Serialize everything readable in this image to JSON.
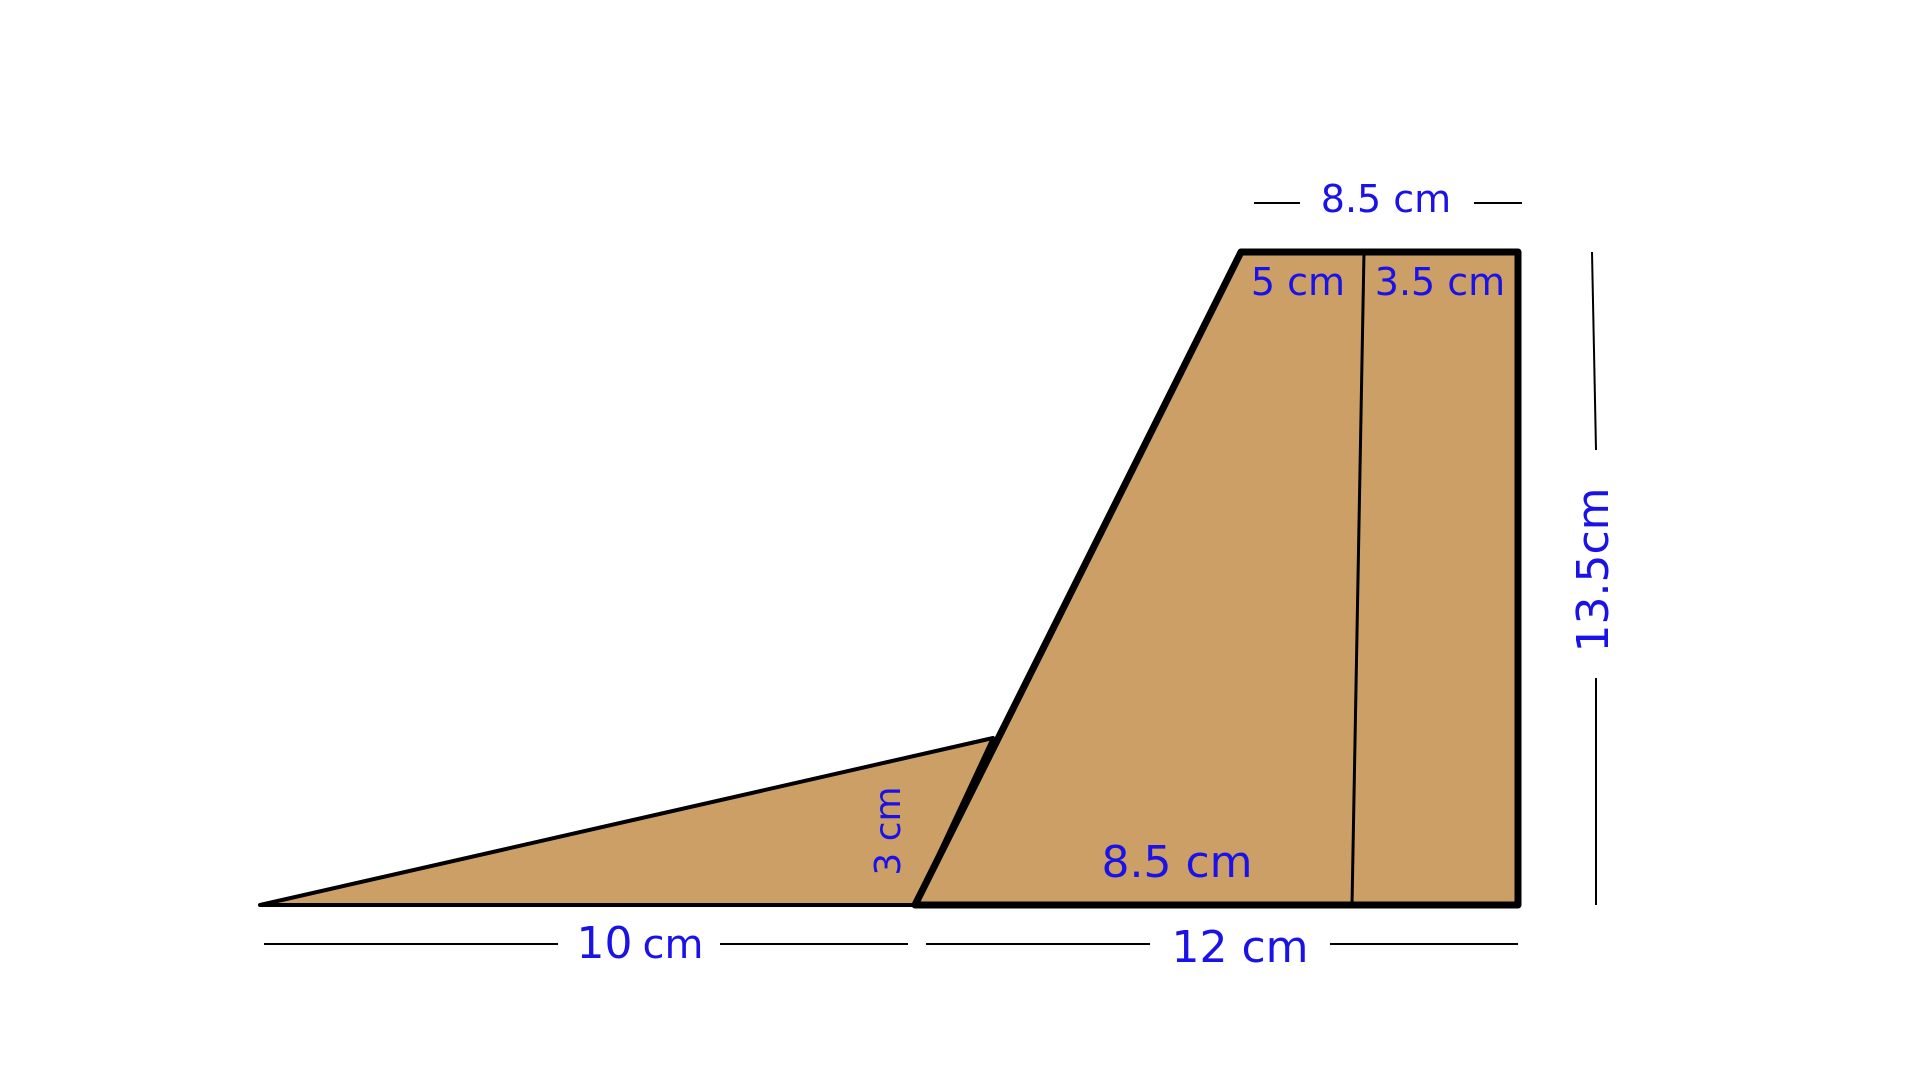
{
  "colors": {
    "shape_fill": "#cc9f66",
    "outline": "#000000",
    "label": "#1a12e6"
  },
  "labels": {
    "top_width": "8.5 cm",
    "top_left_segment": "5 cm",
    "top_right_segment": "3.5 cm",
    "height": "13.5cm",
    "triangle_height": "3 cm",
    "inner_base": "8.5 cm",
    "triangle_base_number": "10",
    "triangle_base_unit": "cm",
    "trapezoid_base": "12 cm"
  }
}
